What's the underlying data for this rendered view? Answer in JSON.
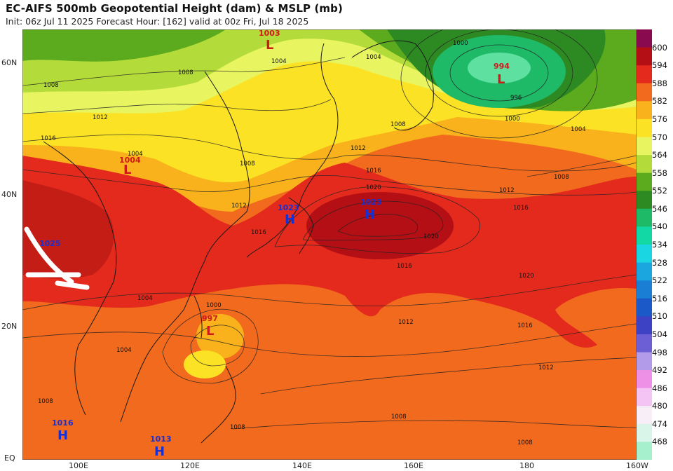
{
  "header": {
    "title": "EC-AIFS 500mb Geopotential Height (dam) & MSLP (mb)",
    "subtitle": "Init: 06z Jul 11 2025   Forecast Hour: [162]   valid at 00z Fri, Jul 18 2025"
  },
  "lat_labels": [
    "60N",
    "40N",
    "20N",
    "EQ"
  ],
  "lon_labels": [
    "100E",
    "120E",
    "140E",
    "160E",
    "180",
    "160W"
  ],
  "colorbar": {
    "levels": [
      "600",
      "594",
      "588",
      "582",
      "576",
      "570",
      "564",
      "558",
      "552",
      "546",
      "540",
      "534",
      "528",
      "522",
      "516",
      "510",
      "504",
      "498",
      "492",
      "486",
      "480",
      "474",
      "468"
    ],
    "colors": [
      "#8a0a4f",
      "#b40f14",
      "#e32a1d",
      "#f26a1d",
      "#f9b21b",
      "#fbe224",
      "#e8f560",
      "#b3dc3a",
      "#5caa1e",
      "#2d8a22",
      "#1fba68",
      "#12d8a6",
      "#19d6e2",
      "#1ca6e0",
      "#1a7fd4",
      "#1c59c8",
      "#3d42c4",
      "#6c5ed4",
      "#b29be8",
      "#ee90e6",
      "#f4c4f4",
      "#f8eef8",
      "#d9f4e8",
      "#a6f0cd"
    ]
  },
  "pressure_centers": [
    {
      "type": "L",
      "value": "1003",
      "color": "#d01a1a"
    },
    {
      "type": "L",
      "value": "994",
      "color": "#d01a1a"
    },
    {
      "type": "L",
      "value": "1004",
      "color": "#d01a1a"
    },
    {
      "type": "H",
      "value": "1023",
      "color": "#1a2fd0"
    },
    {
      "type": "H",
      "value": "1023",
      "color": "#1a2fd0"
    },
    {
      "type": "L",
      "value": "997",
      "color": "#d01a1a"
    },
    {
      "type": "H",
      "value": "1016",
      "color": "#1a2fd0"
    },
    {
      "type": "H",
      "value": "1013",
      "color": "#1a2fd0"
    },
    {
      "type": "",
      "value": "1025",
      "color": "#1a2fd0"
    }
  ],
  "isobar_labels": [
    "1004",
    "1008",
    "1008",
    "1012",
    "1016",
    "1004",
    "1008",
    "1004",
    "1000",
    "996",
    "1000",
    "1004",
    "1008",
    "1012",
    "1016",
    "1020",
    "1008",
    "1012",
    "1016",
    "1020",
    "1016",
    "1012",
    "1016",
    "1020",
    "1016",
    "1012",
    "1012",
    "1008",
    "1008",
    "1008",
    "1000",
    "1004",
    "1004",
    "1008"
  ]
}
